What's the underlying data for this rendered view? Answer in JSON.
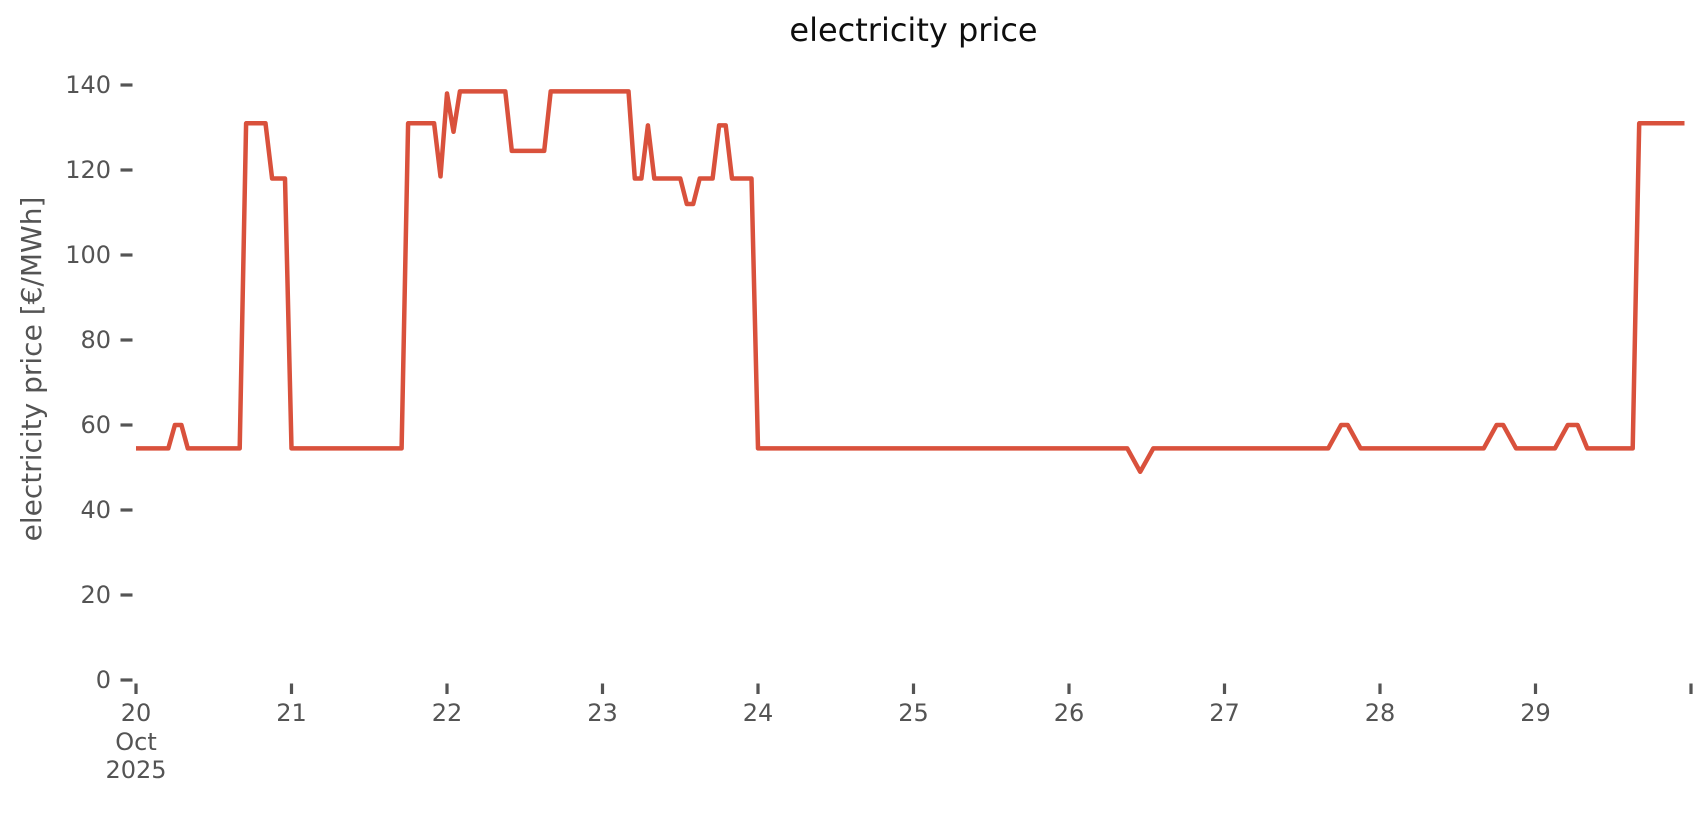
{
  "title": "electricity price",
  "colors": {
    "line": "#d9513c",
    "axis_text": "#545454",
    "title_text": "#0e0e0e",
    "background": "#ffffff"
  },
  "chart_data": {
    "type": "line",
    "title": "electricity price",
    "xlabel": "",
    "ylabel": "electricity price [€/MWh]",
    "legend_position": "none",
    "grid": false,
    "ylim": [
      0,
      147
    ],
    "xlim": [
      19.95,
      30.1
    ],
    "y_ticks": [
      0,
      20,
      40,
      60,
      80,
      100,
      120,
      140
    ],
    "x_ticks": [
      20,
      21,
      22,
      23,
      24,
      25,
      26,
      27,
      28,
      29,
      30
    ],
    "x_tick_labels": [
      "20",
      "21",
      "22",
      "23",
      "24",
      "25",
      "26",
      "27",
      "28",
      "29",
      ""
    ],
    "month_label": "Oct",
    "year_label": "2025",
    "series": [
      {
        "name": "electricity price",
        "color": "#d9513c",
        "x_unit": "day of October 2025 (fraction = hour of day)",
        "y_unit": "EUR/MWh",
        "points": [
          [
            20.0,
            54.5
          ],
          [
            20.208,
            54.5
          ],
          [
            20.25,
            60
          ],
          [
            20.292,
            60
          ],
          [
            20.333,
            54.5
          ],
          [
            20.667,
            54.5
          ],
          [
            20.708,
            131
          ],
          [
            20.833,
            131
          ],
          [
            20.875,
            118
          ],
          [
            20.958,
            118
          ],
          [
            21.0,
            54.5
          ],
          [
            21.708,
            54.5
          ],
          [
            21.75,
            131
          ],
          [
            21.917,
            131
          ],
          [
            21.958,
            118.5
          ],
          [
            22.0,
            138
          ],
          [
            22.042,
            129
          ],
          [
            22.083,
            138.5
          ],
          [
            22.375,
            138.5
          ],
          [
            22.417,
            124.5
          ],
          [
            22.625,
            124.5
          ],
          [
            22.667,
            138.5
          ],
          [
            23.167,
            138.5
          ],
          [
            23.208,
            118
          ],
          [
            23.25,
            118
          ],
          [
            23.292,
            130.5
          ],
          [
            23.333,
            118
          ],
          [
            23.5,
            118
          ],
          [
            23.542,
            112
          ],
          [
            23.583,
            112
          ],
          [
            23.625,
            118
          ],
          [
            23.708,
            118
          ],
          [
            23.75,
            130.5
          ],
          [
            23.792,
            130.5
          ],
          [
            23.833,
            118
          ],
          [
            23.958,
            118
          ],
          [
            24.0,
            54.5
          ],
          [
            26.375,
            54.5
          ],
          [
            26.458,
            49
          ],
          [
            26.542,
            54.5
          ],
          [
            27.667,
            54.5
          ],
          [
            27.75,
            60
          ],
          [
            27.792,
            60
          ],
          [
            27.875,
            54.5
          ],
          [
            28.667,
            54.5
          ],
          [
            28.75,
            60
          ],
          [
            28.792,
            60
          ],
          [
            28.875,
            54.5
          ],
          [
            29.125,
            54.5
          ],
          [
            29.208,
            60
          ],
          [
            29.271,
            60
          ],
          [
            29.333,
            54.5
          ],
          [
            29.625,
            54.5
          ],
          [
            29.667,
            131
          ],
          [
            29.958,
            131
          ]
        ]
      }
    ]
  }
}
